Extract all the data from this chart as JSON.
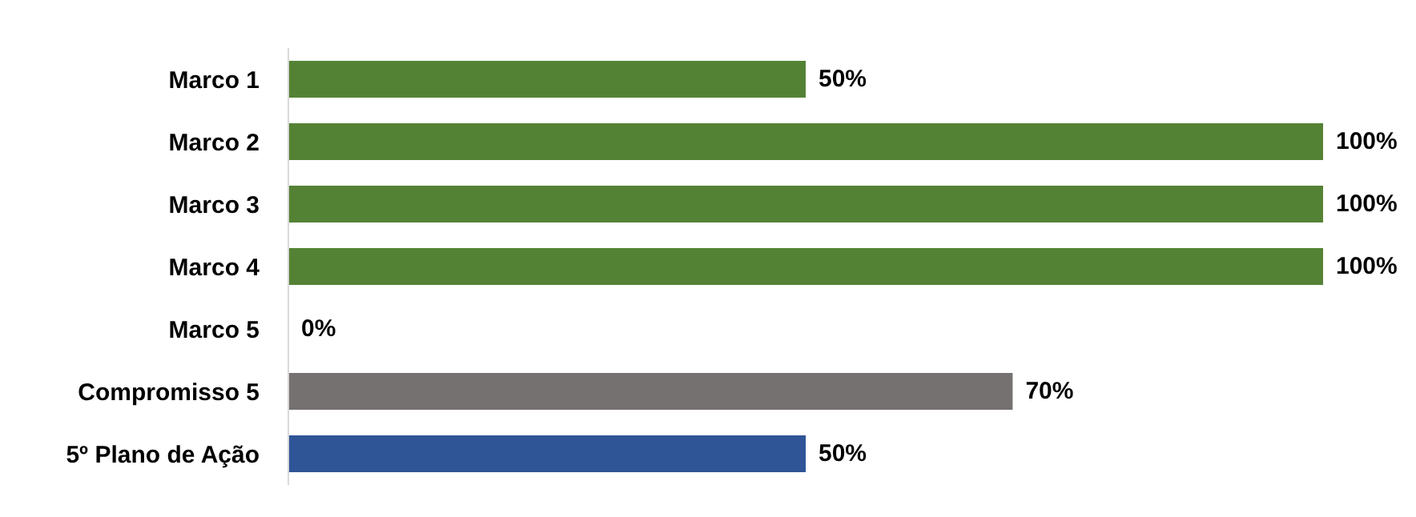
{
  "chart_data": {
    "type": "bar",
    "orientation": "horizontal",
    "categories": [
      "Marco 1",
      "Marco 2",
      "Marco 3",
      "Marco 4",
      "Marco 5",
      "Compromisso 5",
      "5º Plano de Ação"
    ],
    "values": [
      50,
      100,
      100,
      100,
      0,
      70,
      50
    ],
    "colors": [
      "#548235",
      "#548235",
      "#548235",
      "#548235",
      "#548235",
      "#767171",
      "#2f5597"
    ],
    "value_labels": [
      "50%",
      "100%",
      "100%",
      "100%",
      "0%",
      "70%",
      "50%"
    ],
    "xlim": [
      0,
      100
    ],
    "tick_labels": "y",
    "grid": false,
    "legend": false
  }
}
